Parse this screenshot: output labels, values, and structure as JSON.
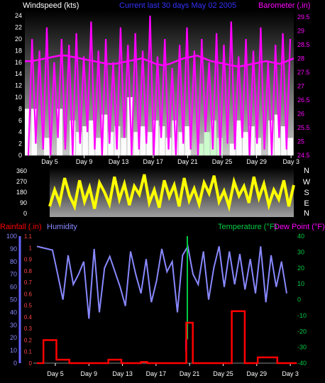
{
  "header": {
    "windspeed_label": "Windspeed (kts)",
    "title": "Current last 30 days May 02 2005",
    "barometer_label": "Barometer (.in)"
  },
  "colors": {
    "wind": "#ff00ff",
    "barometer": "#ff00ff",
    "gust_fill": "#ffffff",
    "direction": "#ffff00",
    "humidity": "#8888ff",
    "rainfall": "#ff0000",
    "temperature": "#00cc44",
    "dewpoint": "#ff00ff",
    "title": "#3333ff"
  },
  "chart_data": [
    {
      "type": "line",
      "panel": "wind",
      "x_tick_labels": [
        "Day 5",
        "Day 9",
        "Day 13",
        "Day 17",
        "Day 21",
        "Day 25",
        "Day 29",
        "Day 3"
      ],
      "y_left_ticks": [
        0,
        2,
        4,
        6,
        8,
        10,
        12,
        14,
        16,
        18,
        20,
        22,
        24
      ],
      "y_right_ticks": [
        "24.5",
        "25",
        "25.5",
        "26",
        "26.5",
        "27",
        "27.5",
        "28",
        "28.5",
        "29",
        "29.5"
      ],
      "ylim_left": [
        0,
        25
      ],
      "ylim_right": [
        24.5,
        29.75
      ],
      "series": [
        {
          "name": "Windspeed",
          "values": [
            0,
            20,
            2,
            18,
            1,
            22,
            0,
            16,
            3,
            20,
            1,
            19,
            0,
            21,
            2,
            17,
            4,
            23,
            1,
            18,
            0,
            20,
            2,
            16,
            1,
            22,
            3,
            19,
            0,
            21,
            1,
            18,
            2,
            24,
            0,
            17,
            3,
            20,
            1,
            15,
            0,
            19,
            2,
            22,
            1,
            18,
            0,
            20,
            4,
            16,
            1,
            21,
            0,
            19,
            2,
            23,
            1,
            17,
            3,
            20,
            0,
            18,
            2,
            22,
            1,
            16,
            0,
            19,
            3,
            21,
            1,
            20
          ]
        },
        {
          "name": "Barometer",
          "values": [
            27.9,
            27.9,
            27.95,
            28.0,
            28.05,
            28.1,
            28.1,
            28.05,
            28.0,
            27.95,
            27.9,
            27.85,
            27.8,
            27.8,
            27.85,
            27.9,
            27.95,
            28.0,
            27.9,
            27.8,
            27.75,
            27.8,
            27.9,
            28.0,
            28.05,
            28.1,
            28.0,
            27.9,
            27.85,
            27.8,
            27.75,
            27.7,
            27.75,
            27.8,
            27.85,
            27.9,
            27.85,
            27.8,
            27.9,
            28.0
          ]
        },
        {
          "name": "Gust",
          "values": [
            8,
            8,
            0,
            3,
            0,
            8,
            0,
            6,
            4,
            5,
            6,
            3,
            7,
            4,
            5,
            3,
            10,
            4,
            5,
            4,
            6,
            5,
            3,
            6,
            4,
            5,
            0,
            2,
            4,
            6,
            3,
            0,
            2,
            6,
            4,
            5,
            3,
            0,
            6,
            7,
            5,
            3
          ]
        }
      ]
    },
    {
      "type": "line",
      "panel": "wind-direction",
      "y_left_ticks": [
        0,
        90,
        180,
        270,
        360
      ],
      "y_right_labels": [
        "N",
        "W",
        "S",
        "E",
        "N"
      ],
      "ylim": [
        0,
        360
      ],
      "series": [
        {
          "name": "Direction",
          "values": [
            60,
            200,
            90,
            300,
            150,
            60,
            280,
            100,
            220,
            40,
            260,
            180,
            80,
            310,
            120,
            250,
            70,
            230,
            160,
            330,
            90,
            200,
            50,
            280,
            140,
            240,
            60,
            300,
            110,
            210,
            80,
            260,
            170,
            320,
            100,
            190,
            60,
            270,
            150,
            230,
            90,
            310,
            130,
            250,
            70,
            200,
            120,
            280,
            60,
            240
          ]
        }
      ]
    },
    {
      "type": "line",
      "panel": "rain-humidity-temp",
      "rain_label": "Rainfall (.in)",
      "humidity_label": "Humidity",
      "temperature_label": "Temperature (°F)",
      "dewpoint_label": "Dew Point (°F)",
      "x_tick_labels": [
        "Day 5",
        "Day 9",
        "Day 13",
        "Day 17",
        "Day 21",
        "Day 25",
        "Day 29",
        "Day 3"
      ],
      "humidity_ticks": [
        0,
        10,
        20,
        30,
        40,
        50,
        60,
        70,
        80,
        90,
        100
      ],
      "rain_ticks": [
        "0",
        "0.1",
        "0.2",
        "0.3",
        "0.4",
        "0.5",
        "0.6",
        "0.7",
        "0.8",
        "0.9",
        "1",
        "1.1"
      ],
      "temp_ticks": [
        -40,
        -30,
        -20,
        -10,
        0,
        10,
        20,
        30,
        40
      ],
      "ylim_humidity": [
        0,
        100
      ],
      "ylim_rain": [
        0,
        1.1
      ],
      "ylim_temp": [
        -40,
        40
      ],
      "series": [
        {
          "name": "Humidity",
          "values": [
            92,
            91,
            90,
            89,
            70,
            50,
            85,
            62,
            70,
            80,
            35,
            90,
            40,
            75,
            84,
            72,
            60,
            45,
            88,
            70,
            55,
            82,
            48,
            65,
            90,
            72,
            80,
            40,
            85,
            92,
            70,
            62,
            88,
            50,
            75,
            92,
            60,
            88,
            62,
            86,
            58,
            82,
            55,
            92,
            48,
            85,
            60,
            80,
            55
          ]
        },
        {
          "name": "Rainfall",
          "values": [
            0,
            0.2,
            0.2,
            0.03,
            0.03,
            0,
            0,
            0,
            0,
            0,
            0,
            0.03,
            0.03,
            0,
            0,
            0,
            0.01,
            0,
            0,
            0,
            0,
            0,
            0,
            0.35,
            0,
            0,
            0,
            0,
            0,
            0,
            0.45,
            0.45,
            0,
            0,
            0.05,
            0.05,
            0.05,
            0,
            0,
            0
          ]
        },
        {
          "name": "Temperature",
          "values": [
            null,
            null,
            null,
            null,
            null,
            null,
            null,
            null,
            null,
            null,
            null,
            null,
            null,
            null,
            null,
            null,
            null,
            null,
            null,
            null,
            null,
            40,
            -25,
            null,
            null,
            null,
            null,
            null,
            null,
            null,
            null,
            null,
            null,
            null,
            null,
            null,
            null,
            null,
            null,
            null
          ]
        }
      ]
    }
  ]
}
